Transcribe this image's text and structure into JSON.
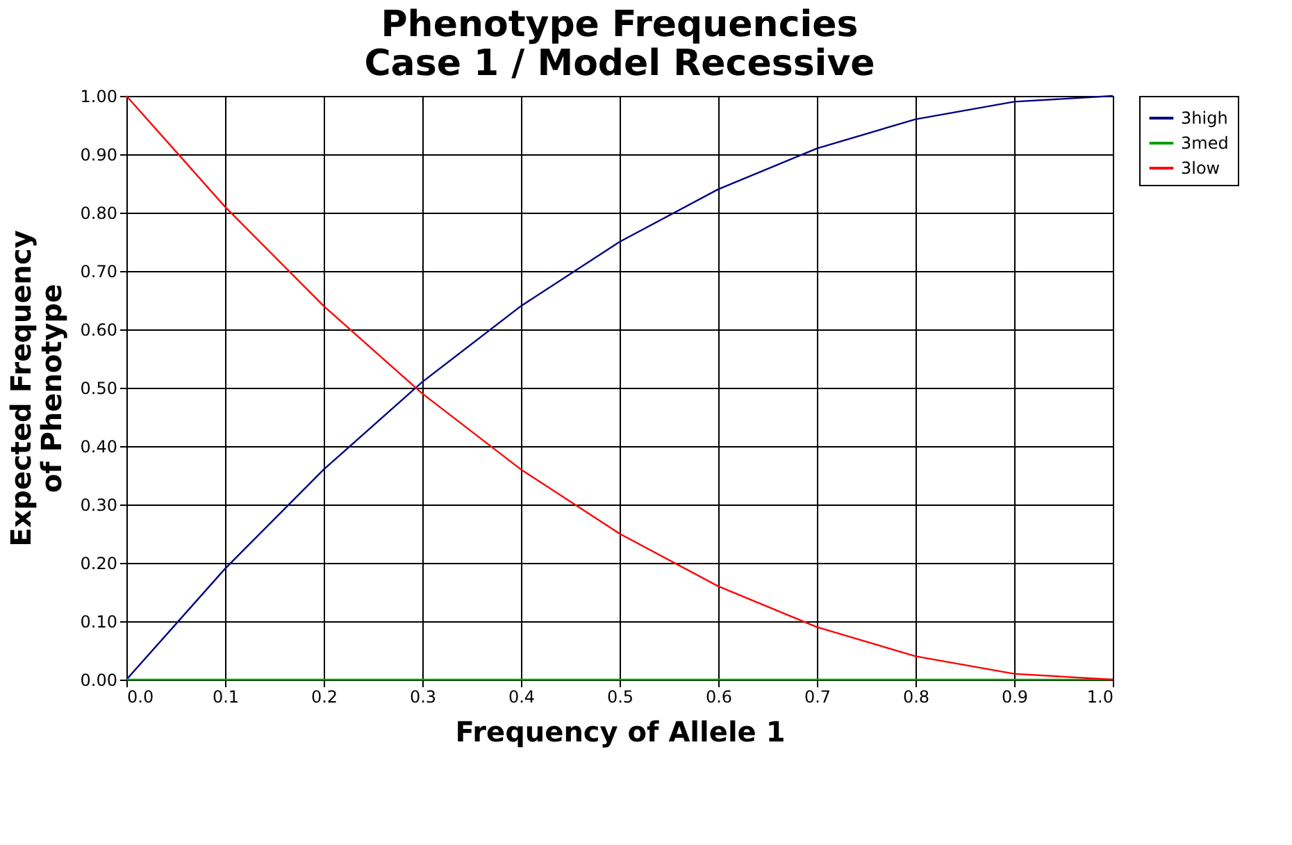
{
  "chart_data": {
    "type": "line",
    "title": [
      "Phenotype Frequencies",
      "Case 1 / Model Recessive"
    ],
    "xlabel": "Frequency of  Allele 1",
    "ylabel": [
      "Expected Frequency",
      "of Phenotype"
    ],
    "x": [
      0.0,
      0.1,
      0.2,
      0.3,
      0.4,
      0.5,
      0.6,
      0.7,
      0.8,
      0.9,
      1.0
    ],
    "series": [
      {
        "name": "3high",
        "color": "#000080",
        "values": [
          0.0,
          0.19,
          0.36,
          0.51,
          0.64,
          0.75,
          0.84,
          0.91,
          0.96,
          0.99,
          1.0
        ]
      },
      {
        "name": "3med",
        "color": "#00a000",
        "values": [
          0,
          0,
          0,
          0,
          0,
          0,
          0,
          0,
          0,
          0,
          0
        ]
      },
      {
        "name": "3low",
        "color": "#ff0000",
        "values": [
          1.0,
          0.81,
          0.64,
          0.49,
          0.36,
          0.25,
          0.16,
          0.09,
          0.04,
          0.01,
          0.0
        ]
      }
    ],
    "xlim": [
      0.0,
      1.0
    ],
    "xticks": [
      {
        "value": 0,
        "label": "0.0"
      },
      {
        "value": 0.1,
        "label": "0.1"
      },
      {
        "value": 0.2,
        "label": "0.2"
      },
      {
        "value": 0.3,
        "label": "0.3"
      },
      {
        "value": 0.4,
        "label": "0.4"
      },
      {
        "value": 0.5,
        "label": "0.5"
      },
      {
        "value": 0.6,
        "label": "0.6"
      },
      {
        "value": 0.7,
        "label": "0.7"
      },
      {
        "value": 0.8,
        "label": "0.8"
      },
      {
        "value": 0.9,
        "label": "0.9"
      },
      {
        "value": 1,
        "label": "1.0"
      }
    ],
    "ylim": [
      0.0,
      1.0
    ],
    "yticks": [
      {
        "value": 0,
        "label": "0.00"
      },
      {
        "value": 0.1,
        "label": "0.10"
      },
      {
        "value": 0.2,
        "label": "0.20"
      },
      {
        "value": 0.3,
        "label": "0.30"
      },
      {
        "value": 0.4,
        "label": "0.40"
      },
      {
        "value": 0.5,
        "label": "0.50"
      },
      {
        "value": 0.6,
        "label": "0.60"
      },
      {
        "value": 0.7,
        "label": "0.70"
      },
      {
        "value": 0.8,
        "label": "0.80"
      },
      {
        "value": 0.9,
        "label": "0.90"
      },
      {
        "value": 1,
        "label": "1.00"
      }
    ],
    "grid": true,
    "legend": "right",
    "marker": "none",
    "line_style": "solid"
  }
}
